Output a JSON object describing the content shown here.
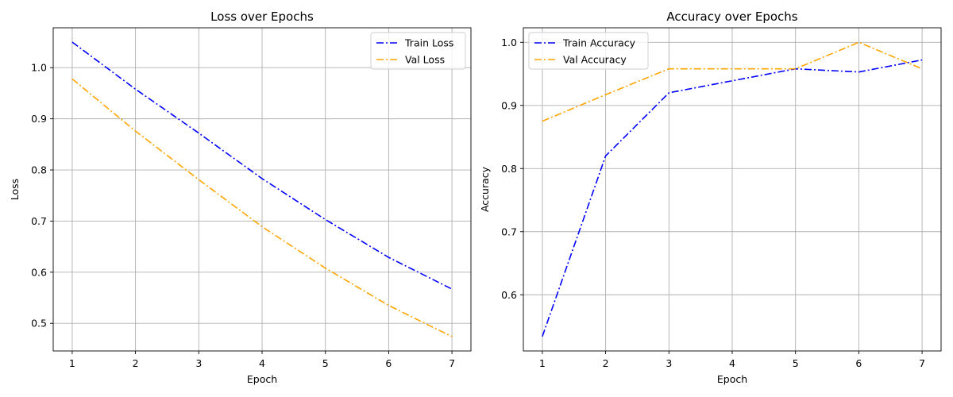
{
  "chart_data": [
    {
      "type": "line",
      "title": "Loss over Epochs",
      "xlabel": "Epoch",
      "ylabel": "Loss",
      "x": [
        1,
        2,
        3,
        4,
        5,
        6,
        7
      ],
      "xlim": [
        0.7,
        7.3
      ],
      "ylim": [
        0.446,
        1.078
      ],
      "xticks": [
        1,
        2,
        3,
        4,
        5,
        6,
        7
      ],
      "yticks": [
        0.5,
        0.6,
        0.7,
        0.8,
        0.9,
        1.0
      ],
      "ytick_labels": [
        "0.5",
        "0.6",
        "0.7",
        "0.8",
        "0.9",
        "1.0"
      ],
      "grid": true,
      "legend_position": "top-right",
      "series": [
        {
          "name": "Train Loss",
          "color": "#0000ff",
          "values": [
            1.05,
            0.958,
            0.872,
            0.783,
            0.703,
            0.629,
            0.567
          ]
        },
        {
          "name": "Val Loss",
          "color": "#ffa500",
          "values": [
            0.978,
            0.876,
            0.781,
            0.689,
            0.608,
            0.535,
            0.474
          ]
        }
      ]
    },
    {
      "type": "line",
      "title": "Accuracy over Epochs",
      "xlabel": "Epoch",
      "ylabel": "Accuracy",
      "x": [
        1,
        2,
        3,
        4,
        5,
        6,
        7
      ],
      "xlim": [
        0.7,
        7.3
      ],
      "ylim": [
        0.511,
        1.023
      ],
      "xticks": [
        1,
        2,
        3,
        4,
        5,
        6,
        7
      ],
      "yticks": [
        0.6,
        0.7,
        0.8,
        0.9,
        1.0
      ],
      "ytick_labels": [
        "0.6",
        "0.7",
        "0.8",
        "0.9",
        "1.0"
      ],
      "grid": true,
      "legend_position": "top-left",
      "series": [
        {
          "name": "Train Accuracy",
          "color": "#0000ff",
          "values": [
            0.534,
            0.82,
            0.92,
            0.939,
            0.958,
            0.953,
            0.972
          ]
        },
        {
          "name": "Val Accuracy",
          "color": "#ffa500",
          "values": [
            0.875,
            0.917,
            0.958,
            0.958,
            0.958,
            1.0,
            0.958
          ]
        }
      ]
    }
  ]
}
